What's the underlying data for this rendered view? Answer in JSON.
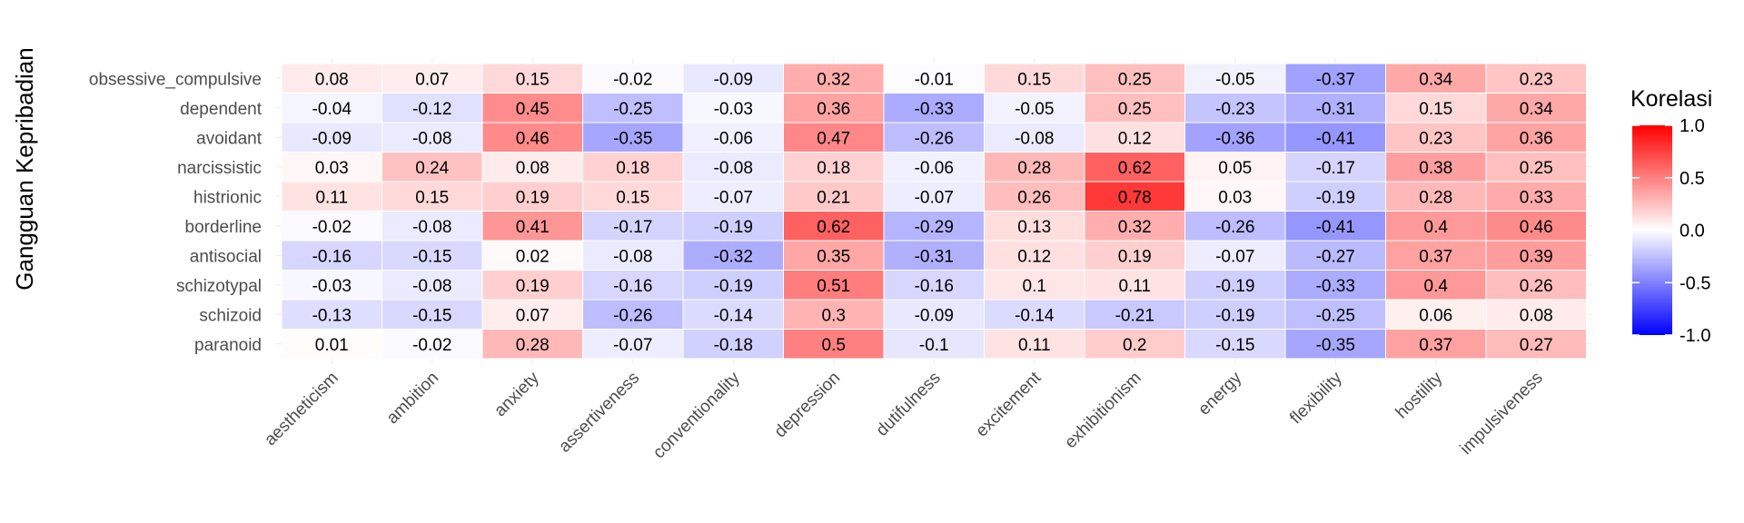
{
  "chart_data": {
    "type": "heatmap",
    "title": "",
    "xlabel": "",
    "ylabel": "Gangguan Kepribadian",
    "x": [
      "aestheticism",
      "ambition",
      "anxiety",
      "assertiveness",
      "conventionality",
      "depression",
      "dutifulness",
      "excitement",
      "exhibitionism",
      "energy",
      "flexibility",
      "hostility",
      "impulsiveness"
    ],
    "y": [
      "obsessive_compulsive",
      "dependent",
      "avoidant",
      "narcissistic",
      "histrionic",
      "borderline",
      "antisocial",
      "schizotypal",
      "schizoid",
      "paranoid"
    ],
    "values": [
      [
        0.08,
        0.07,
        0.15,
        -0.02,
        -0.09,
        0.32,
        -0.01,
        0.15,
        0.25,
        -0.05,
        -0.37,
        0.34,
        0.23
      ],
      [
        -0.04,
        -0.12,
        0.45,
        -0.25,
        -0.03,
        0.36,
        -0.33,
        -0.05,
        0.25,
        -0.23,
        -0.31,
        0.15,
        0.34
      ],
      [
        -0.09,
        -0.08,
        0.46,
        -0.35,
        -0.06,
        0.47,
        -0.26,
        -0.08,
        0.12,
        -0.36,
        -0.41,
        0.23,
        0.36
      ],
      [
        0.03,
        0.24,
        0.08,
        0.18,
        -0.08,
        0.18,
        -0.06,
        0.28,
        0.62,
        0.05,
        -0.17,
        0.38,
        0.25
      ],
      [
        0.11,
        0.15,
        0.19,
        0.15,
        -0.07,
        0.21,
        -0.07,
        0.26,
        0.78,
        0.03,
        -0.19,
        0.28,
        0.33
      ],
      [
        -0.02,
        -0.08,
        0.41,
        -0.17,
        -0.19,
        0.62,
        -0.29,
        0.13,
        0.32,
        -0.26,
        -0.41,
        0.4,
        0.46
      ],
      [
        -0.16,
        -0.15,
        0.02,
        -0.08,
        -0.32,
        0.35,
        -0.31,
        0.12,
        0.19,
        -0.07,
        -0.27,
        0.37,
        0.39
      ],
      [
        -0.03,
        -0.08,
        0.19,
        -0.16,
        -0.19,
        0.51,
        -0.16,
        0.1,
        0.11,
        -0.19,
        -0.33,
        0.4,
        0.26
      ],
      [
        -0.13,
        -0.15,
        0.07,
        -0.26,
        -0.14,
        0.3,
        -0.09,
        -0.14,
        -0.21,
        -0.19,
        -0.25,
        0.06,
        0.08
      ],
      [
        0.01,
        -0.02,
        0.28,
        -0.07,
        -0.18,
        0.5,
        -0.1,
        0.11,
        0.2,
        -0.15,
        -0.35,
        0.37,
        0.27
      ]
    ],
    "labels": [
      [
        "0.08",
        "0.07",
        "0.15",
        "-0.02",
        "-0.09",
        "0.32",
        "-0.01",
        "0.15",
        "0.25",
        "-0.05",
        "-0.37",
        "0.34",
        "0.23"
      ],
      [
        "-0.04",
        "-0.12",
        "0.45",
        "-0.25",
        "-0.03",
        "0.36",
        "-0.33",
        "-0.05",
        "0.25",
        "-0.23",
        "-0.31",
        "0.15",
        "0.34"
      ],
      [
        "-0.09",
        "-0.08",
        "0.46",
        "-0.35",
        "-0.06",
        "0.47",
        "-0.26",
        "-0.08",
        "0.12",
        "-0.36",
        "-0.41",
        "0.23",
        "0.36"
      ],
      [
        "0.03",
        "0.24",
        "0.08",
        "0.18",
        "-0.08",
        "0.18",
        "-0.06",
        "0.28",
        "0.62",
        "0.05",
        "-0.17",
        "0.38",
        "0.25"
      ],
      [
        "0.11",
        "0.15",
        "0.19",
        "0.15",
        "-0.07",
        "0.21",
        "-0.07",
        "0.26",
        "0.78",
        "0.03",
        "-0.19",
        "0.28",
        "0.33"
      ],
      [
        "-0.02",
        "-0.08",
        "0.41",
        "-0.17",
        "-0.19",
        "0.62",
        "-0.29",
        "0.13",
        "0.32",
        "-0.26",
        "-0.41",
        "0.4",
        "0.46"
      ],
      [
        "-0.16",
        "-0.15",
        "0.02",
        "-0.08",
        "-0.32",
        "0.35",
        "-0.31",
        "0.12",
        "0.19",
        "-0.07",
        "-0.27",
        "0.37",
        "0.39"
      ],
      [
        "-0.03",
        "-0.08",
        "0.19",
        "-0.16",
        "-0.19",
        "0.51",
        "-0.16",
        "0.1",
        "0.11",
        "-0.19",
        "-0.33",
        "0.4",
        "0.26"
      ],
      [
        "-0.13",
        "-0.15",
        "0.07",
        "-0.26",
        "-0.14",
        "0.3",
        "-0.09",
        "-0.14",
        "-0.21",
        "-0.19",
        "-0.25",
        "0.06",
        "0.08"
      ],
      [
        "0.01",
        "-0.02",
        "0.28",
        "-0.07",
        "-0.18",
        "0.5",
        "-0.1",
        "0.11",
        "0.2",
        "-0.15",
        "-0.35",
        "0.37",
        "0.27"
      ]
    ],
    "legend": {
      "title": "Korelasi",
      "placement": "right",
      "range": [
        -1,
        1
      ],
      "ticks": [
        "1.0",
        "0.5",
        "0.0",
        "-0.5",
        "-1.0"
      ],
      "tick_values": [
        1,
        0.5,
        0,
        -0.5,
        -1
      ],
      "colors": {
        "low": "#0000ff",
        "mid": "#ffffff",
        "high": "#ff0000"
      }
    },
    "grid": true
  }
}
